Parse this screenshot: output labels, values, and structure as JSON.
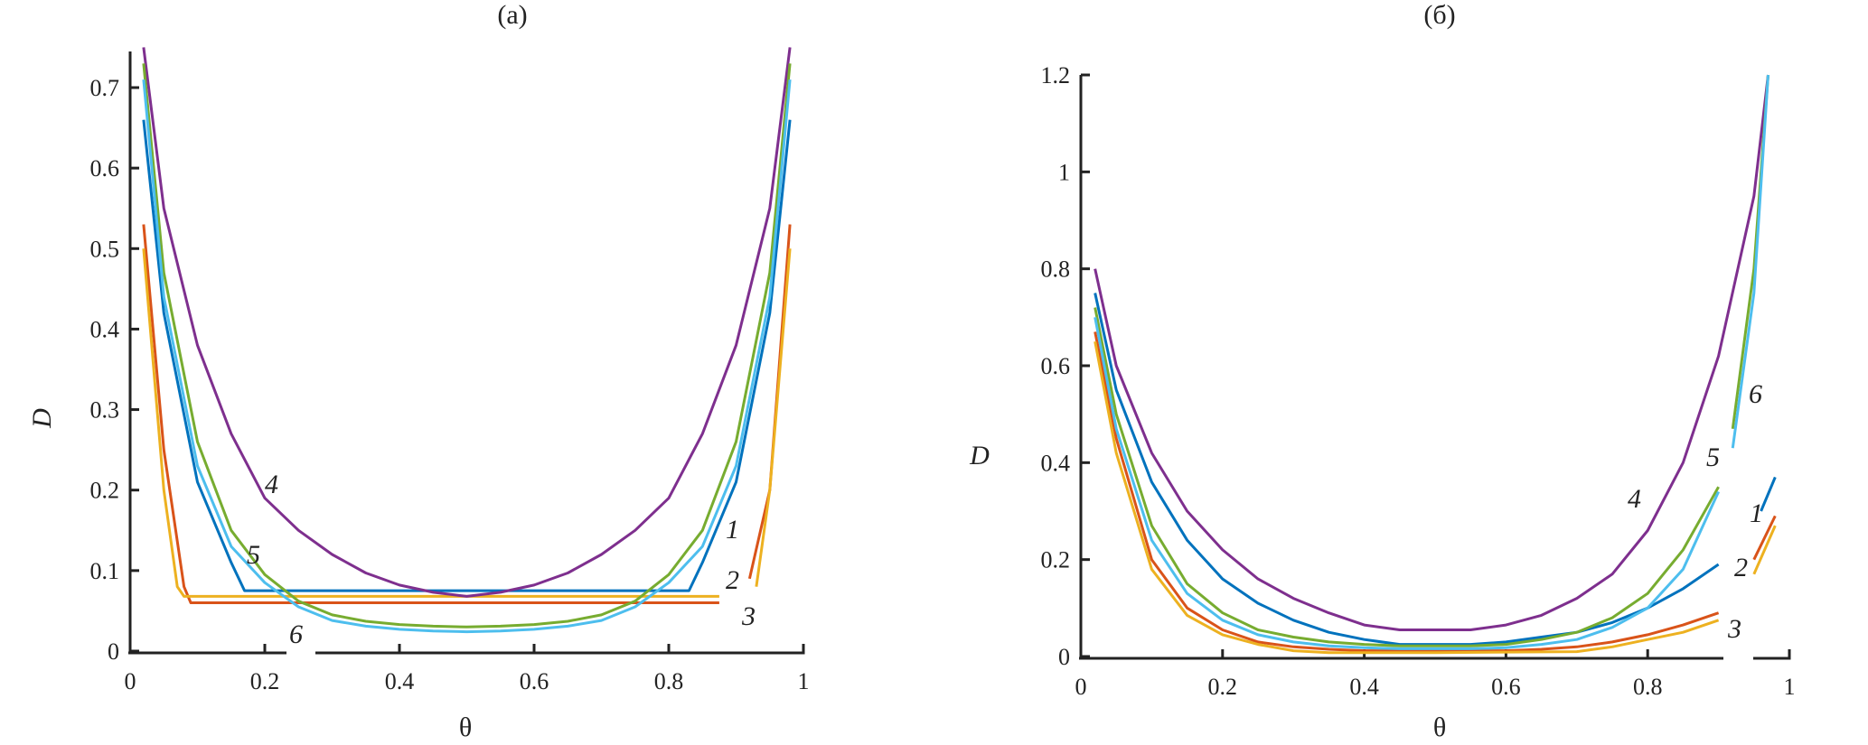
{
  "chart_data": [
    {
      "type": "line",
      "title": "(a)",
      "xlabel": "θ",
      "ylabel": "D",
      "xlim": [
        0,
        1
      ],
      "ylim": [
        0,
        0.75
      ],
      "xticks": [
        "0",
        "0.2",
        "0.4",
        "0.6",
        "0.8",
        "1"
      ],
      "yticks": [
        "0",
        "0.1",
        "0.2",
        "0.3",
        "0.4",
        "0.5",
        "0.6",
        "0.7"
      ],
      "grid": false,
      "series": [
        {
          "name": "1",
          "color": "#0072BD",
          "x": [
            0.02,
            0.05,
            0.1,
            0.15,
            0.17,
            0.3,
            0.5,
            0.7,
            0.83,
            0.85,
            0.9,
            0.95,
            0.98
          ],
          "y": [
            0.66,
            0.42,
            0.21,
            0.11,
            0.075,
            0.075,
            0.075,
            0.075,
            0.075,
            0.11,
            0.21,
            0.42,
            0.66
          ]
        },
        {
          "name": "2",
          "color": "#D95319",
          "x": [
            0.02,
            0.05,
            0.08,
            0.09,
            0.5,
            0.875,
            null,
            0.92,
            0.95,
            0.98
          ],
          "y": [
            0.53,
            0.25,
            0.08,
            0.06,
            0.06,
            0.06,
            null,
            0.09,
            0.2,
            0.53
          ]
        },
        {
          "name": "3",
          "color": "#EDB120",
          "x": [
            0.02,
            0.05,
            0.07,
            0.08,
            0.5,
            0.875,
            null,
            0.93,
            0.95,
            0.98
          ],
          "y": [
            0.5,
            0.2,
            0.08,
            0.068,
            0.068,
            0.068,
            null,
            0.08,
            0.2,
            0.5
          ]
        },
        {
          "name": "4",
          "color": "#7E2F8E",
          "x": [
            0.02,
            0.05,
            0.1,
            0.15,
            0.2,
            0.25,
            0.3,
            0.35,
            0.4,
            0.45,
            0.5,
            0.55,
            0.6,
            0.65,
            0.7,
            0.75,
            0.8,
            0.85,
            0.9,
            0.95,
            0.98
          ],
          "y": [
            0.75,
            0.55,
            0.38,
            0.27,
            0.19,
            0.15,
            0.12,
            0.097,
            0.082,
            0.073,
            0.068,
            0.073,
            0.082,
            0.097,
            0.12,
            0.15,
            0.19,
            0.27,
            0.38,
            0.55,
            0.75
          ]
        },
        {
          "name": "5",
          "color": "#77AC30",
          "x": [
            0.02,
            0.05,
            0.1,
            0.15,
            0.2,
            0.25,
            0.3,
            0.35,
            0.4,
            0.45,
            0.5,
            0.55,
            0.6,
            0.65,
            0.7,
            0.75,
            0.8,
            0.85,
            0.9,
            0.95,
            0.98
          ],
          "y": [
            0.73,
            0.47,
            0.26,
            0.15,
            0.095,
            0.062,
            0.045,
            0.037,
            0.033,
            0.031,
            0.03,
            0.031,
            0.033,
            0.037,
            0.045,
            0.062,
            0.095,
            0.15,
            0.26,
            0.47,
            0.73
          ]
        },
        {
          "name": "6",
          "color": "#4DBEEE",
          "x": [
            0.02,
            0.05,
            0.1,
            0.15,
            0.2,
            0.25,
            0.3,
            0.35,
            0.4,
            0.45,
            0.5,
            0.55,
            0.6,
            0.65,
            0.7,
            0.75,
            0.8,
            0.85,
            0.9,
            0.95,
            0.98
          ],
          "y": [
            0.71,
            0.44,
            0.23,
            0.13,
            0.085,
            0.055,
            0.038,
            0.031,
            0.027,
            0.025,
            0.024,
            0.025,
            0.027,
            0.031,
            0.038,
            0.055,
            0.085,
            0.13,
            0.23,
            0.44,
            0.71
          ]
        }
      ]
    },
    {
      "type": "line",
      "title": "(б)",
      "xlabel": "θ",
      "ylabel": "D",
      "xlim": [
        0,
        1
      ],
      "ylim": [
        0,
        1.2
      ],
      "xticks": [
        "0",
        "0.2",
        "0.4",
        "0.6",
        "0.8",
        "1"
      ],
      "yticks": [
        "0",
        "0.2",
        "0.4",
        "0.6",
        "0.8",
        "1",
        "1.2"
      ],
      "grid": false,
      "series": [
        {
          "name": "1",
          "color": "#0072BD",
          "x": [
            0.02,
            0.05,
            0.1,
            0.15,
            0.2,
            0.25,
            0.3,
            0.35,
            0.4,
            0.45,
            0.5,
            0.55,
            0.6,
            0.65,
            0.7,
            0.75,
            0.8,
            0.85,
            0.9,
            null,
            0.96,
            0.98
          ],
          "y": [
            0.75,
            0.55,
            0.36,
            0.24,
            0.16,
            0.11,
            0.075,
            0.05,
            0.035,
            0.025,
            0.025,
            0.025,
            0.03,
            0.04,
            0.05,
            0.07,
            0.1,
            0.14,
            0.19,
            null,
            0.3,
            0.37
          ]
        },
        {
          "name": "2",
          "color": "#D95319",
          "x": [
            0.02,
            0.05,
            0.1,
            0.15,
            0.2,
            0.25,
            0.3,
            0.35,
            0.4,
            0.5,
            0.6,
            0.65,
            0.7,
            0.75,
            0.8,
            0.85,
            0.9,
            null,
            0.95,
            0.98
          ],
          "y": [
            0.67,
            0.45,
            0.2,
            0.1,
            0.055,
            0.03,
            0.02,
            0.015,
            0.012,
            0.012,
            0.012,
            0.015,
            0.02,
            0.03,
            0.045,
            0.065,
            0.09,
            null,
            0.2,
            0.29
          ]
        },
        {
          "name": "3",
          "color": "#EDB120",
          "x": [
            0.02,
            0.05,
            0.1,
            0.15,
            0.2,
            0.25,
            0.3,
            0.35,
            0.5,
            0.7,
            0.75,
            0.8,
            0.85,
            0.9,
            null,
            0.95,
            0.98
          ],
          "y": [
            0.65,
            0.42,
            0.18,
            0.085,
            0.045,
            0.025,
            0.012,
            0.008,
            0.008,
            0.01,
            0.02,
            0.035,
            0.05,
            0.075,
            null,
            0.17,
            0.27
          ]
        },
        {
          "name": "4",
          "color": "#7E2F8E",
          "x": [
            0.02,
            0.05,
            0.1,
            0.15,
            0.2,
            0.25,
            0.3,
            0.35,
            0.4,
            0.45,
            0.5,
            0.55,
            0.6,
            0.65,
            0.7,
            0.75,
            0.8,
            0.85,
            0.9,
            0.95,
            0.97
          ],
          "y": [
            0.8,
            0.6,
            0.42,
            0.3,
            0.22,
            0.16,
            0.12,
            0.09,
            0.065,
            0.055,
            0.055,
            0.055,
            0.065,
            0.085,
            0.12,
            0.17,
            0.26,
            0.4,
            0.62,
            0.95,
            1.2
          ]
        },
        {
          "name": "5",
          "color": "#77AC30",
          "x": [
            0.02,
            0.05,
            0.1,
            0.15,
            0.2,
            0.25,
            0.3,
            0.35,
            0.4,
            0.45,
            0.5,
            0.55,
            0.6,
            0.65,
            0.7,
            0.75,
            0.8,
            0.85,
            0.9,
            null,
            0.92,
            0.95,
            0.97
          ],
          "y": [
            0.72,
            0.5,
            0.27,
            0.15,
            0.09,
            0.055,
            0.04,
            0.03,
            0.025,
            0.022,
            0.022,
            0.022,
            0.025,
            0.035,
            0.05,
            0.08,
            0.13,
            0.22,
            0.35,
            null,
            0.47,
            0.8,
            1.2
          ]
        },
        {
          "name": "6",
          "color": "#4DBEEE",
          "x": [
            0.02,
            0.05,
            0.1,
            0.15,
            0.2,
            0.25,
            0.3,
            0.35,
            0.4,
            0.45,
            0.5,
            0.55,
            0.6,
            0.65,
            0.7,
            0.75,
            0.8,
            0.85,
            0.9,
            null,
            0.92,
            0.95,
            0.97
          ],
          "y": [
            0.7,
            0.47,
            0.24,
            0.13,
            0.075,
            0.045,
            0.03,
            0.022,
            0.018,
            0.016,
            0.016,
            0.016,
            0.018,
            0.025,
            0.035,
            0.06,
            0.1,
            0.18,
            0.34,
            null,
            0.43,
            0.75,
            1.2
          ]
        }
      ]
    }
  ]
}
